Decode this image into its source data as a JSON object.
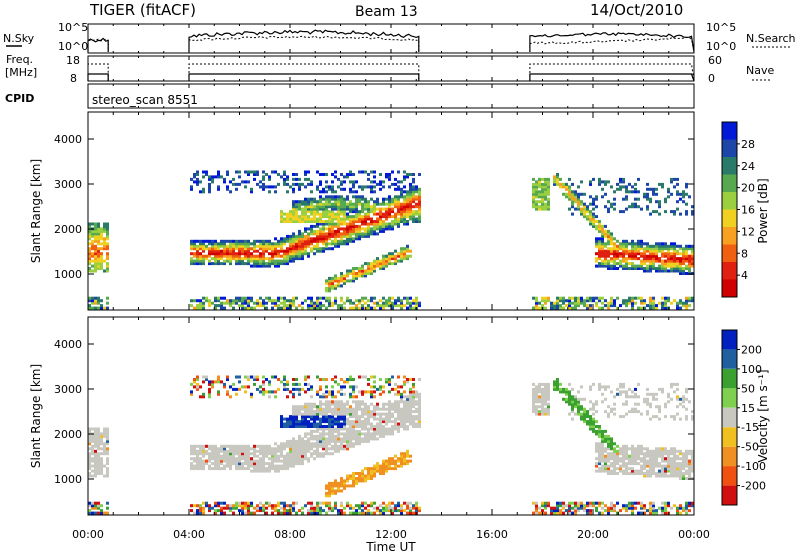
{
  "header": {
    "radar": "TIGER (fitACF)",
    "beam": "Beam 13",
    "date": "14/Oct/2010"
  },
  "top_panels": {
    "nsky_label": "N.Sky",
    "nsky_ticks": [
      "10^5",
      "10^0"
    ],
    "nsky_right_ticks": [
      "10^5",
      "10^0"
    ],
    "nsearch_label": "N.Search",
    "freq_label_1": "Freq.",
    "freq_label_2": "[MHz]",
    "freq_ticks": [
      "18",
      "8"
    ],
    "nave_ticks": [
      "60",
      "0"
    ],
    "nave_label": "Nave",
    "cpid_label": "CPID",
    "cpid_value": "stereo_scan 8551"
  },
  "chart_data": [
    {
      "type": "heatmap",
      "title": "",
      "ylabel": "Slant Range [km]",
      "xlabel": "Time UT",
      "x_range_hours": [
        0,
        24
      ],
      "ylim": [
        200,
        4600
      ],
      "yticks": [
        "4000",
        "3000",
        "2000",
        "1000"
      ],
      "xticks": [
        "00:00",
        "04:00",
        "08:00",
        "12:00",
        "16:00",
        "20:00",
        "00:00"
      ],
      "colorbar": {
        "label": "Power [dB]",
        "ticks": [
          "28",
          "24",
          "20",
          "16",
          "12",
          "8",
          "4"
        ],
        "colors": [
          "#0018d8",
          "#1c46a8",
          "#2a7a6a",
          "#58a850",
          "#9ad040",
          "#f0d020",
          "#f8a020",
          "#f06010",
          "#e02010",
          "#d00000"
        ]
      },
      "data_gaps_hours": [
        [
          0.8,
          4.0
        ],
        [
          13.1,
          17.5
        ]
      ]
    },
    {
      "type": "heatmap",
      "title": "",
      "ylabel": "Slant Range [km]",
      "xlabel": "Time UT",
      "x_range_hours": [
        0,
        24
      ],
      "ylim": [
        200,
        4600
      ],
      "yticks": [
        "4000",
        "3000",
        "2000",
        "1000"
      ],
      "xticks": [
        "00:00",
        "04:00",
        "08:00",
        "12:00",
        "16:00",
        "20:00",
        "00:00"
      ],
      "colorbar": {
        "label": "Velocity [m s⁻¹]",
        "ticks": [
          "200",
          "100",
          "50",
          "15",
          "-15",
          "-50",
          "-100",
          "-200"
        ],
        "colors": [
          "#0020c0",
          "#2060a0",
          "#3aa030",
          "#80d050",
          "#c8c8c0",
          "#f0c020",
          "#f09020",
          "#f05010",
          "#d01010"
        ]
      },
      "data_gaps_hours": [
        [
          0.8,
          4.0
        ],
        [
          13.1,
          17.5
        ]
      ]
    }
  ]
}
